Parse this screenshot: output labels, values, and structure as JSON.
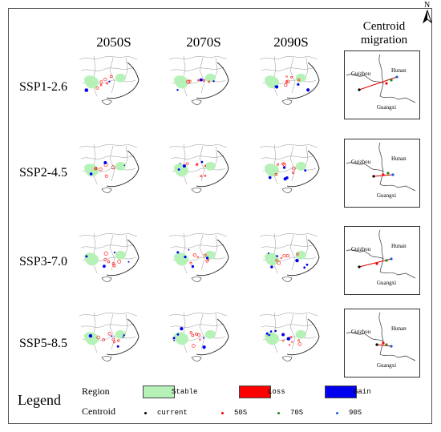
{
  "columns": [
    "2050S",
    "2070S",
    "2090S"
  ],
  "migration_header": [
    "Centroid",
    "migration"
  ],
  "north_label": "N",
  "rows": [
    {
      "label": "SSP1-2.6",
      "mig_labels": {
        "guizhou": "Guizhou",
        "hunan": "Hunan",
        "guangxi": "Guangxi"
      }
    },
    {
      "label": "SSP2-4.5",
      "mig_labels": {
        "guizhou": "Guizhou",
        "hunan": "Hunan",
        "guangxi": "Guangxi"
      }
    },
    {
      "label": "SSP3-7.0",
      "mig_labels": {
        "guizhou": "Guizhou",
        "hunan": "Hunan",
        "guangxi": "Guangxi"
      }
    },
    {
      "label": "SSP5-8.5",
      "mig_labels": {
        "guizhou": "Guizhou",
        "hunan": "Hunan",
        "guangxi": "Guangxi"
      }
    }
  ],
  "legend": {
    "title": "Legend",
    "region_label": "Region",
    "centroid_label": "Centroid",
    "regions": [
      {
        "name": "Stable",
        "color": "#b6f2b8"
      },
      {
        "name": "Loss",
        "color": "#ff0000"
      },
      {
        "name": "Gain",
        "color": "#0000ee"
      }
    ],
    "centroids": [
      {
        "name": "current",
        "color": "#000000"
      },
      {
        "name": "50S",
        "color": "#ff0000"
      },
      {
        "name": "70S",
        "color": "#1a8a1a"
      },
      {
        "name": "90S",
        "color": "#1560d8"
      }
    ]
  }
}
